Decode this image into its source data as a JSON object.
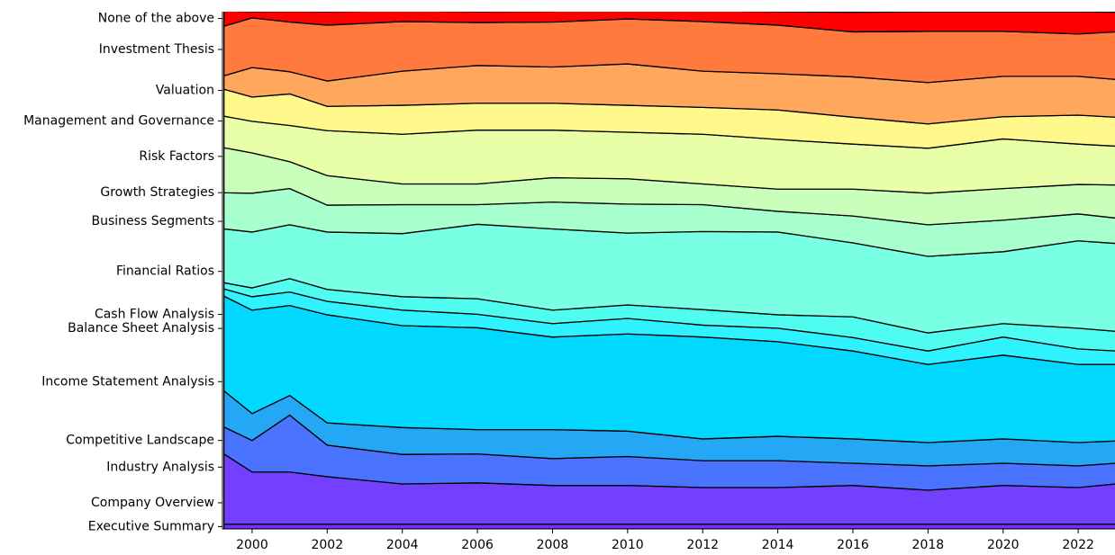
{
  "chart_data": {
    "type": "stacked_area",
    "x": [
      1999.25,
      2000,
      2001,
      2002,
      2004,
      2006,
      2008,
      2010,
      2012,
      2014,
      2016,
      2018,
      2020,
      2022,
      2023
    ],
    "xlim": [
      1999.21,
      2022.98
    ],
    "xticks": [
      2000,
      2002,
      2004,
      2006,
      2008,
      2010,
      2012,
      2014,
      2016,
      2018,
      2020,
      2022
    ],
    "ylim": [
      0,
      1
    ],
    "series": [
      {
        "name": "Executive Summary",
        "color": "#7a2cff",
        "values": [
          0.009,
          0.009,
          0.009,
          0.009,
          0.009,
          0.009,
          0.009,
          0.009,
          0.009,
          0.009,
          0.009,
          0.009,
          0.009,
          0.009,
          0.009
        ]
      },
      {
        "name": "Company Overview",
        "color": "#7340ff",
        "values": [
          0.136,
          0.101,
          0.101,
          0.092,
          0.078,
          0.08,
          0.075,
          0.075,
          0.071,
          0.071,
          0.075,
          0.066,
          0.075,
          0.071,
          0.078
        ]
      },
      {
        "name": "Industry Analysis",
        "color": "#4a74ff",
        "values": [
          0.052,
          0.061,
          0.11,
          0.061,
          0.057,
          0.056,
          0.052,
          0.056,
          0.052,
          0.052,
          0.043,
          0.047,
          0.043,
          0.042,
          0.04
        ]
      },
      {
        "name": "Competitive Landscape",
        "color": "#24a8f6",
        "values": [
          0.07,
          0.052,
          0.038,
          0.043,
          0.052,
          0.047,
          0.056,
          0.049,
          0.042,
          0.047,
          0.047,
          0.045,
          0.047,
          0.045,
          0.043
        ]
      },
      {
        "name": "Income Statement Analysis",
        "color": "#00d8ff",
        "values": [
          0.183,
          0.2,
          0.174,
          0.209,
          0.197,
          0.197,
          0.179,
          0.188,
          0.197,
          0.183,
          0.17,
          0.151,
          0.162,
          0.151,
          0.148
        ]
      },
      {
        "name": "Balance Sheet Analysis",
        "color": "#2ef2ff",
        "values": [
          0.014,
          0.026,
          0.026,
          0.026,
          0.03,
          0.026,
          0.026,
          0.03,
          0.023,
          0.026,
          0.026,
          0.026,
          0.035,
          0.03,
          0.026
        ]
      },
      {
        "name": "Cash Flow Analysis",
        "color": "#4efcf0",
        "values": [
          0.012,
          0.017,
          0.026,
          0.023,
          0.026,
          0.03,
          0.026,
          0.026,
          0.03,
          0.026,
          0.04,
          0.035,
          0.026,
          0.04,
          0.038
        ]
      },
      {
        "name": "Financial Ratios",
        "color": "#78ffe4",
        "values": [
          0.104,
          0.108,
          0.104,
          0.111,
          0.122,
          0.144,
          0.157,
          0.139,
          0.151,
          0.16,
          0.143,
          0.148,
          0.139,
          0.169,
          0.17
        ]
      },
      {
        "name": "Business Segments",
        "color": "#a8ffce",
        "values": [
          0.07,
          0.075,
          0.07,
          0.052,
          0.056,
          0.038,
          0.052,
          0.056,
          0.052,
          0.04,
          0.052,
          0.061,
          0.061,
          0.052,
          0.049
        ]
      },
      {
        "name": "Growth Strategies",
        "color": "#c9ffbb",
        "values": [
          0.087,
          0.078,
          0.052,
          0.057,
          0.04,
          0.04,
          0.047,
          0.049,
          0.04,
          0.043,
          0.052,
          0.061,
          0.061,
          0.057,
          0.064
        ]
      },
      {
        "name": "Risk Factors",
        "color": "#e8ffa8",
        "values": [
          0.061,
          0.061,
          0.07,
          0.087,
          0.096,
          0.104,
          0.092,
          0.09,
          0.096,
          0.096,
          0.087,
          0.087,
          0.096,
          0.078,
          0.075
        ]
      },
      {
        "name": "Management and Governance",
        "color": "#fff88a",
        "values": [
          0.052,
          0.047,
          0.061,
          0.047,
          0.056,
          0.052,
          0.052,
          0.052,
          0.052,
          0.057,
          0.052,
          0.047,
          0.043,
          0.056,
          0.056
        ]
      },
      {
        "name": "Valuation",
        "color": "#ffa75c",
        "values": [
          0.026,
          0.057,
          0.043,
          0.049,
          0.066,
          0.073,
          0.07,
          0.08,
          0.07,
          0.07,
          0.078,
          0.08,
          0.078,
          0.075,
          0.073
        ]
      },
      {
        "name": "Investment Thesis",
        "color": "#ff7a3c",
        "values": [
          0.096,
          0.096,
          0.096,
          0.108,
          0.096,
          0.083,
          0.087,
          0.087,
          0.096,
          0.094,
          0.087,
          0.099,
          0.087,
          0.082,
          0.092
        ]
      },
      {
        "name": "None of the above",
        "color": "#ff0000",
        "values": [
          0.03,
          0.012,
          0.021,
          0.026,
          0.021,
          0.021,
          0.021,
          0.016,
          0.021,
          0.026,
          0.038,
          0.038,
          0.038,
          0.043,
          0.038
        ]
      }
    ]
  }
}
